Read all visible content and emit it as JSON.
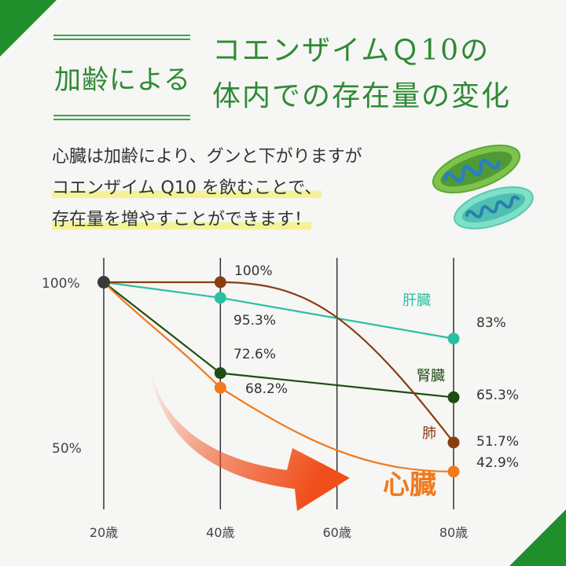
{
  "header": {
    "title_left": "加齢による",
    "title_right_line1": "コエンザイムＱ10の",
    "title_right_line2": "体内での存在量の変化"
  },
  "description": {
    "line1": "心臓は加齢により、グンと下がりますが",
    "line2": "コエンザイム Q10 を飲むことで、",
    "line3": "存在量を増やすことができます！"
  },
  "colors": {
    "accent": "#2e8a35",
    "liver": "#2bbfa2",
    "kidney": "#1e4d12",
    "lung": "#8a3d10",
    "heart": "#f07a1e",
    "arrow": "#f04e1a"
  },
  "chart_data": {
    "type": "line",
    "x": [
      "20歳",
      "40歳",
      "60歳",
      "80歳"
    ],
    "y_ticks": [
      "100%",
      "50%"
    ],
    "ylim": [
      30,
      100
    ],
    "grid": "vertical",
    "series": [
      {
        "name": "肝臓",
        "key": "liver",
        "points": [
          [
            20,
            100
          ],
          [
            40,
            95.3
          ],
          [
            80,
            83
          ]
        ],
        "labels": [
          "",
          "95.3%",
          "83%"
        ]
      },
      {
        "name": "腎臓",
        "key": "kidney",
        "points": [
          [
            20,
            100
          ],
          [
            40,
            72.6
          ],
          [
            80,
            65.3
          ]
        ],
        "labels": [
          "",
          "72.6%",
          "65.3%"
        ]
      },
      {
        "name": "肺",
        "key": "lung",
        "points": [
          [
            20,
            100
          ],
          [
            40,
            100
          ],
          [
            80,
            51.7
          ]
        ],
        "labels": [
          "",
          "100%",
          "51.7%"
        ]
      },
      {
        "name": "心臓",
        "key": "heart",
        "points": [
          [
            20,
            100
          ],
          [
            40,
            68.2
          ],
          [
            80,
            42.9
          ]
        ],
        "labels": [
          "",
          "68.2%",
          "42.9%"
        ]
      }
    ]
  }
}
